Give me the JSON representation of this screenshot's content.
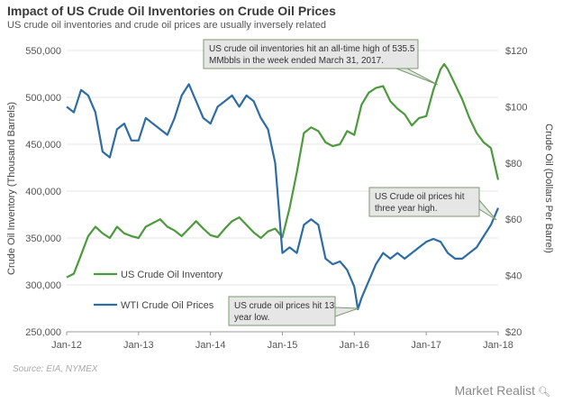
{
  "header": {
    "title": "Impact of US Crude Oil Inventories on Crude Oil Prices",
    "subtitle": "US crude oil inventories and crude oil prices are usually inversely related"
  },
  "footer": {
    "source": "Source: EIA, NYMEX",
    "brand": "Market Realist",
    "brand_icon": "magnifier-icon"
  },
  "colors": {
    "inventory": "#4c9a3c",
    "price": "#2e6ca4",
    "annotation_fill": "#e6e6e6",
    "annotation_border": "#7a9a6e",
    "grid": "#e4e4e4"
  },
  "chart_data": {
    "type": "line",
    "xlabel": "",
    "ylabel_left": "Crude Oil Inventory  (Thousand  Barrels)",
    "ylabel_right": "Crude Oil (Dollars Per Barrel)",
    "x_ticks": [
      "Jan-12",
      "Jan-13",
      "Jan-14",
      "Jan-15",
      "Jan-16",
      "Jan-17",
      "Jan-18"
    ],
    "xlim": [
      2012.0,
      2018.0
    ],
    "y_left": {
      "ticks": [
        "250,000",
        "300,000",
        "350,000",
        "400,000",
        "450,000",
        "500,000",
        "550,000"
      ],
      "ylim": [
        250000,
        550000
      ]
    },
    "y_right": {
      "ticks": [
        "$20",
        "$40",
        "$60",
        "$80",
        "$100",
        "$120"
      ],
      "ylim": [
        20,
        120
      ]
    },
    "grid": "horizontal",
    "legend": [
      {
        "label": "US Crude Oil Inventory",
        "axis": "left"
      },
      {
        "label": "WTI Crude Oil Prices",
        "axis": "right"
      }
    ],
    "series": [
      {
        "name": "US Crude Oil Inventory",
        "axis": "left",
        "x": [
          2012.0,
          2012.1,
          2012.2,
          2012.3,
          2012.4,
          2012.5,
          2012.6,
          2012.7,
          2012.8,
          2012.9,
          2013.0,
          2013.1,
          2013.2,
          2013.3,
          2013.4,
          2013.5,
          2013.6,
          2013.7,
          2013.8,
          2013.9,
          2014.0,
          2014.1,
          2014.2,
          2014.3,
          2014.4,
          2014.5,
          2014.6,
          2014.7,
          2014.8,
          2014.9,
          2015.0,
          2015.1,
          2015.2,
          2015.3,
          2015.4,
          2015.5,
          2015.6,
          2015.7,
          2015.8,
          2015.9,
          2016.0,
          2016.1,
          2016.2,
          2016.3,
          2016.4,
          2016.5,
          2016.6,
          2016.7,
          2016.8,
          2016.9,
          2017.0,
          2017.1,
          2017.2,
          2017.25,
          2017.3,
          2017.4,
          2017.5,
          2017.6,
          2017.7,
          2017.8,
          2017.9,
          2018.0
        ],
        "values": [
          308000,
          312000,
          332000,
          352000,
          362000,
          355000,
          350000,
          362000,
          355000,
          352000,
          350000,
          362000,
          366000,
          370000,
          362000,
          358000,
          352000,
          360000,
          368000,
          360000,
          353000,
          351000,
          360000,
          368000,
          372000,
          364000,
          356000,
          350000,
          357000,
          360000,
          351000,
          382000,
          420000,
          462000,
          468000,
          464000,
          452000,
          448000,
          450000,
          464000,
          460000,
          492000,
          505000,
          510000,
          512000,
          496000,
          488000,
          482000,
          470000,
          478000,
          480000,
          508000,
          530000,
          535500,
          530000,
          514000,
          498000,
          478000,
          462000,
          452000,
          446000,
          412000
        ]
      },
      {
        "name": "WTI Crude Oil Prices",
        "axis": "right",
        "x": [
          2012.0,
          2012.1,
          2012.2,
          2012.3,
          2012.4,
          2012.5,
          2012.6,
          2012.7,
          2012.8,
          2012.9,
          2013.0,
          2013.1,
          2013.2,
          2013.3,
          2013.4,
          2013.5,
          2013.6,
          2013.7,
          2013.8,
          2013.9,
          2014.0,
          2014.1,
          2014.2,
          2014.3,
          2014.4,
          2014.5,
          2014.6,
          2014.7,
          2014.8,
          2014.9,
          2015.0,
          2015.1,
          2015.2,
          2015.3,
          2015.4,
          2015.5,
          2015.6,
          2015.7,
          2015.8,
          2015.9,
          2016.0,
          2016.05,
          2016.1,
          2016.2,
          2016.3,
          2016.4,
          2016.5,
          2016.6,
          2016.7,
          2016.8,
          2016.9,
          2017.0,
          2017.1,
          2017.2,
          2017.3,
          2017.4,
          2017.5,
          2017.6,
          2017.7,
          2017.8,
          2017.9,
          2018.0
        ],
        "values": [
          100,
          98,
          106,
          104,
          98,
          84,
          82,
          92,
          94,
          88,
          88,
          96,
          94,
          92,
          90,
          96,
          104,
          108,
          102,
          96,
          94,
          100,
          102,
          104,
          100,
          104,
          102,
          96,
          92,
          80,
          48,
          50,
          48,
          58,
          60,
          58,
          46,
          44,
          45,
          42,
          36,
          28,
          32,
          38,
          44,
          48,
          46,
          48,
          46,
          48,
          50,
          52,
          53,
          52,
          48,
          46,
          46,
          48,
          50,
          54,
          58,
          64
        ]
      }
    ],
    "annotations": [
      {
        "text": [
          "US crude oil inventories hit an all-time high of 535.5",
          "MMbbls in the week ended March 31, 2017."
        ]
      },
      {
        "text": [
          "US Crude oil prices hit",
          "three year high."
        ]
      },
      {
        "text": [
          "US crude oil prices hit 13",
          "year low."
        ]
      }
    ]
  }
}
